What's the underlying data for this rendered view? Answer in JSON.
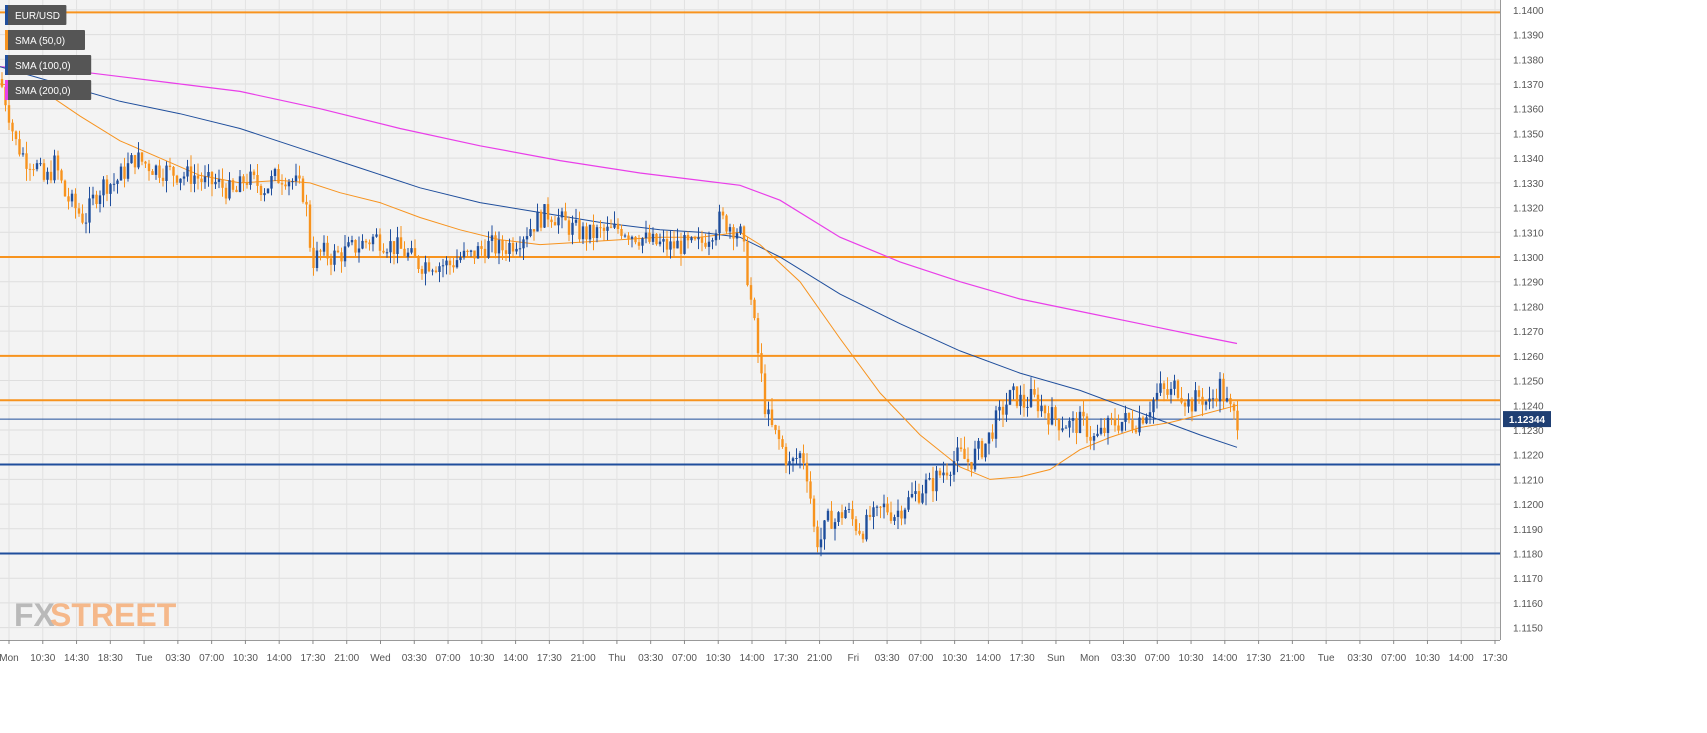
{
  "chart_data": {
    "type": "candlestick",
    "symbol": "EUR/USD",
    "legend": [
      {
        "label": "EUR/USD",
        "color": "#1f4e9c"
      },
      {
        "label": "SMA (50,0)",
        "color": "#f7931e"
      },
      {
        "label": "SMA (100,0)",
        "color": "#1f4e9c"
      },
      {
        "label": "SMA (200,0)",
        "color": "#e93ee9"
      }
    ],
    "ylim": [
      1.1145,
      1.1404
    ],
    "y_ticks": [
      "1.1150",
      "1.1160",
      "1.1170",
      "1.1180",
      "1.1190",
      "1.1200",
      "1.1210",
      "1.1220",
      "1.1230",
      "1.1240",
      "1.1250",
      "1.1260",
      "1.1270",
      "1.1280",
      "1.1290",
      "1.1300",
      "1.1310",
      "1.1320",
      "1.1330",
      "1.1340",
      "1.1350",
      "1.1360",
      "1.1370",
      "1.1380",
      "1.1390",
      "1.1400"
    ],
    "x_ticks": [
      "Mon",
      "10:30",
      "14:30",
      "18:30",
      "Tue",
      "03:30",
      "07:00",
      "10:30",
      "14:00",
      "17:30",
      "21:00",
      "Wed",
      "03:30",
      "07:00",
      "10:30",
      "14:00",
      "17:30",
      "21:00",
      "Thu",
      "03:30",
      "07:00",
      "10:30",
      "14:00",
      "17:30",
      "21:00",
      "Fri",
      "03:30",
      "07:00",
      "10:30",
      "14:00",
      "17:30",
      "Sun",
      "Mon",
      "03:30",
      "07:00",
      "10:30",
      "14:00",
      "17:30",
      "21:00",
      "Tue",
      "03:30",
      "07:00",
      "10:30",
      "14:00",
      "17:30"
    ],
    "current_price": "1.12344",
    "current_price_value": 1.12344,
    "levels": [
      {
        "value": 1.1399,
        "color": "#f7931e"
      },
      {
        "value": 1.13,
        "color": "#f7931e"
      },
      {
        "value": 1.126,
        "color": "#f7931e"
      },
      {
        "value": 1.1242,
        "color": "#f7931e"
      },
      {
        "value": 1.1216,
        "color": "#1f4e9c"
      },
      {
        "value": 1.118,
        "color": "#1f4e9c"
      }
    ],
    "close_path": [
      [
        0,
        1.1372
      ],
      [
        8,
        1.136
      ],
      [
        15,
        1.1347
      ],
      [
        25,
        1.134
      ],
      [
        35,
        1.1338
      ],
      [
        45,
        1.133
      ],
      [
        55,
        1.1338
      ],
      [
        65,
        1.1325
      ],
      [
        75,
        1.132
      ],
      [
        85,
        1.1315
      ],
      [
        95,
        1.1325
      ],
      [
        105,
        1.133
      ],
      [
        115,
        1.133
      ],
      [
        125,
        1.1335
      ],
      [
        135,
        1.134
      ],
      [
        145,
        1.1338
      ],
      [
        155,
        1.1336
      ],
      [
        165,
        1.1335
      ],
      [
        175,
        1.1334
      ],
      [
        185,
        1.1333
      ],
      [
        195,
        1.1333
      ],
      [
        205,
        1.133
      ],
      [
        215,
        1.133
      ],
      [
        225,
        1.1328
      ],
      [
        235,
        1.1325
      ],
      [
        245,
        1.1332
      ],
      [
        255,
        1.133
      ],
      [
        265,
        1.1328
      ],
      [
        275,
        1.1332
      ],
      [
        285,
        1.1333
      ],
      [
        295,
        1.133
      ],
      [
        305,
        1.1325
      ],
      [
        312,
        1.1298
      ],
      [
        322,
        1.1302
      ],
      [
        332,
        1.13
      ],
      [
        345,
        1.1302
      ],
      [
        360,
        1.1305
      ],
      [
        375,
        1.1308
      ],
      [
        390,
        1.1305
      ],
      [
        400,
        1.1303
      ],
      [
        410,
        1.13
      ],
      [
        420,
        1.1297
      ],
      [
        430,
        1.1298
      ],
      [
        440,
        1.1297
      ],
      [
        450,
        1.1297
      ],
      [
        460,
        1.13
      ],
      [
        470,
        1.13
      ],
      [
        480,
        1.1303
      ],
      [
        490,
        1.1305
      ],
      [
        500,
        1.1303
      ],
      [
        510,
        1.1305
      ],
      [
        520,
        1.1308
      ],
      [
        530,
        1.1312
      ],
      [
        540,
        1.1316
      ],
      [
        550,
        1.1318
      ],
      [
        560,
        1.1315
      ],
      [
        570,
        1.1312
      ],
      [
        580,
        1.131
      ],
      [
        590,
        1.1309
      ],
      [
        600,
        1.131
      ],
      [
        610,
        1.131
      ],
      [
        620,
        1.1312
      ],
      [
        630,
        1.131
      ],
      [
        640,
        1.1308
      ],
      [
        650,
        1.1306
      ],
      [
        660,
        1.1305
      ],
      [
        670,
        1.1304
      ],
      [
        680,
        1.1305
      ],
      [
        690,
        1.1304
      ],
      [
        700,
        1.1305
      ],
      [
        710,
        1.131
      ],
      [
        720,
        1.1315
      ],
      [
        730,
        1.1313
      ],
      [
        740,
        1.131
      ],
      [
        745,
        1.13
      ],
      [
        750,
        1.1285
      ],
      [
        755,
        1.127
      ],
      [
        760,
        1.1255
      ],
      [
        765,
        1.124
      ],
      [
        770,
        1.1232
      ],
      [
        775,
        1.1228
      ],
      [
        780,
        1.1225
      ],
      [
        785,
        1.122
      ],
      [
        790,
        1.1215
      ],
      [
        795,
        1.1218
      ],
      [
        800,
        1.122
      ],
      [
        805,
        1.1218
      ],
      [
        810,
        1.1205
      ],
      [
        815,
        1.1186
      ],
      [
        820,
        1.1185
      ],
      [
        825,
        1.119
      ],
      [
        830,
        1.1195
      ],
      [
        835,
        1.1193
      ],
      [
        840,
        1.1195
      ],
      [
        845,
        1.1198
      ],
      [
        850,
        1.1195
      ],
      [
        855,
        1.1192
      ],
      [
        860,
        1.119
      ],
      [
        865,
        1.119
      ],
      [
        870,
        1.1195
      ],
      [
        875,
        1.1194
      ],
      [
        880,
        1.1197
      ],
      [
        885,
        1.1199
      ],
      [
        890,
        1.1197
      ],
      [
        895,
        1.1196
      ],
      [
        900,
        1.1198
      ],
      [
        905,
        1.12
      ],
      [
        910,
        1.1202
      ],
      [
        915,
        1.1204
      ],
      [
        920,
        1.1205
      ],
      [
        925,
        1.1208
      ],
      [
        930,
        1.1207
      ],
      [
        935,
        1.121
      ],
      [
        940,
        1.1212
      ],
      [
        945,
        1.1214
      ],
      [
        950,
        1.1216
      ],
      [
        955,
        1.1218
      ],
      [
        960,
        1.122
      ],
      [
        965,
        1.1218
      ],
      [
        970,
        1.1217
      ],
      [
        975,
        1.122
      ],
      [
        980,
        1.1222
      ],
      [
        985,
        1.1224
      ],
      [
        990,
        1.1228
      ],
      [
        995,
        1.1233
      ],
      [
        1000,
        1.1236
      ],
      [
        1005,
        1.124
      ],
      [
        1010,
        1.1243
      ],
      [
        1015,
        1.1244
      ],
      [
        1020,
        1.1242
      ],
      [
        1025,
        1.124
      ],
      [
        1030,
        1.1243
      ],
      [
        1035,
        1.1242
      ],
      [
        1040,
        1.124
      ],
      [
        1045,
        1.1238
      ],
      [
        1050,
        1.1236
      ],
      [
        1055,
        1.1235
      ],
      [
        1060,
        1.1233
      ],
      [
        1065,
        1.1233
      ],
      [
        1070,
        1.1232
      ],
      [
        1075,
        1.1232
      ],
      [
        1080,
        1.1233
      ],
      [
        1085,
        1.1232
      ],
      [
        1090,
        1.1228
      ],
      [
        1095,
        1.1226
      ],
      [
        1100,
        1.1228
      ],
      [
        1105,
        1.123
      ],
      [
        1110,
        1.1232
      ],
      [
        1115,
        1.1233
      ],
      [
        1120,
        1.1233
      ],
      [
        1125,
        1.1234
      ],
      [
        1130,
        1.1233
      ],
      [
        1135,
        1.1233
      ],
      [
        1140,
        1.1235
      ],
      [
        1145,
        1.1237
      ],
      [
        1150,
        1.124
      ],
      [
        1155,
        1.1243
      ],
      [
        1160,
        1.1246
      ],
      [
        1165,
        1.1245
      ],
      [
        1170,
        1.1244
      ],
      [
        1175,
        1.1248
      ],
      [
        1180,
        1.1246
      ],
      [
        1185,
        1.1243
      ],
      [
        1190,
        1.124
      ],
      [
        1195,
        1.1242
      ],
      [
        1200,
        1.1244
      ],
      [
        1205,
        1.1242
      ],
      [
        1210,
        1.124
      ],
      [
        1215,
        1.1245
      ],
      [
        1220,
        1.1248
      ],
      [
        1225,
        1.1242
      ],
      [
        1230,
        1.1238
      ],
      [
        1235,
        1.1235
      ],
      [
        1238,
        1.1234
      ]
    ],
    "sma50": [
      [
        0,
        1.137
      ],
      [
        40,
        1.1368
      ],
      [
        80,
        1.1357
      ],
      [
        120,
        1.1347
      ],
      [
        160,
        1.134
      ],
      [
        200,
        1.1333
      ],
      [
        240,
        1.133
      ],
      [
        280,
        1.1331
      ],
      [
        310,
        1.133
      ],
      [
        340,
        1.1326
      ],
      [
        380,
        1.1322
      ],
      [
        420,
        1.1316
      ],
      [
        460,
        1.1311
      ],
      [
        500,
        1.1307
      ],
      [
        540,
        1.1305
      ],
      [
        580,
        1.1306
      ],
      [
        620,
        1.1307
      ],
      [
        660,
        1.1308
      ],
      [
        700,
        1.1308
      ],
      [
        740,
        1.131
      ],
      [
        760,
        1.1305
      ],
      [
        800,
        1.129
      ],
      [
        840,
        1.1267
      ],
      [
        880,
        1.1245
      ],
      [
        920,
        1.1228
      ],
      [
        960,
        1.1215
      ],
      [
        990,
        1.121
      ],
      [
        1020,
        1.1211
      ],
      [
        1050,
        1.1214
      ],
      [
        1080,
        1.1222
      ],
      [
        1110,
        1.1227
      ],
      [
        1140,
        1.1231
      ],
      [
        1170,
        1.1233
      ],
      [
        1200,
        1.1236
      ],
      [
        1237,
        1.124
      ]
    ],
    "sma100": [
      [
        0,
        1.1377
      ],
      [
        60,
        1.137
      ],
      [
        120,
        1.1363
      ],
      [
        180,
        1.1358
      ],
      [
        240,
        1.1352
      ],
      [
        300,
        1.1344
      ],
      [
        360,
        1.1336
      ],
      [
        420,
        1.1328
      ],
      [
        480,
        1.1322
      ],
      [
        540,
        1.1318
      ],
      [
        600,
        1.1314
      ],
      [
        660,
        1.1311
      ],
      [
        700,
        1.131
      ],
      [
        740,
        1.1308
      ],
      [
        780,
        1.13
      ],
      [
        840,
        1.1285
      ],
      [
        900,
        1.1273
      ],
      [
        960,
        1.1262
      ],
      [
        1020,
        1.1253
      ],
      [
        1080,
        1.1246
      ],
      [
        1140,
        1.1237
      ],
      [
        1200,
        1.1228
      ],
      [
        1237,
        1.1223
      ]
    ],
    "sma200": [
      [
        0,
        1.1377
      ],
      [
        80,
        1.1375
      ],
      [
        160,
        1.1371
      ],
      [
        240,
        1.1367
      ],
      [
        320,
        1.136
      ],
      [
        400,
        1.1352
      ],
      [
        480,
        1.1345
      ],
      [
        560,
        1.1339
      ],
      [
        640,
        1.1334
      ],
      [
        700,
        1.1331
      ],
      [
        740,
        1.1329
      ],
      [
        780,
        1.1323
      ],
      [
        840,
        1.1308
      ],
      [
        900,
        1.1298
      ],
      [
        960,
        1.129
      ],
      [
        1020,
        1.1283
      ],
      [
        1080,
        1.1278
      ],
      [
        1140,
        1.1273
      ],
      [
        1200,
        1.1268
      ],
      [
        1237,
        1.1265
      ]
    ]
  },
  "branding": {
    "logo_left": "FX",
    "logo_right": "STREET"
  }
}
